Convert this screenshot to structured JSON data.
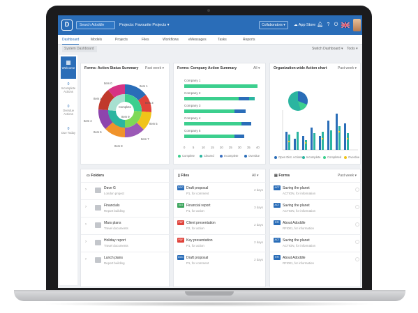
{
  "topbar": {
    "logo": "D",
    "search_placeholder": "Search Adoddle",
    "projects_label": "Projects: Favourite Projects",
    "collaborators_label": "Collaborators",
    "appstore_label": "App Store"
  },
  "nav": {
    "tabs": [
      "Dashboard",
      "Models",
      "Projects",
      "Files",
      "Workflows",
      "eMessages",
      "Tasks",
      "Reports"
    ]
  },
  "subbar": {
    "system_dashboard": "System Dashboard",
    "switch_dashboard": "Switch Dashboard",
    "tools": "Tools"
  },
  "leftcol": {
    "welcome": "Welcome",
    "stats": [
      {
        "num": "0",
        "label": "Incomplete Actions"
      },
      {
        "num": "0",
        "label": "Overdue Actions"
      },
      {
        "num": "0",
        "label": "Due Today"
      }
    ]
  },
  "card_status": {
    "title": "Forms: Action Status Summary",
    "filter": "Past week",
    "labels": [
      "Item 0",
      "Item 1",
      "Item 2",
      "Item 3",
      "Item 4",
      "Item 5",
      "Item 6",
      "Item 7",
      "Item 8",
      "Item 9",
      "Complete"
    ]
  },
  "card_company": {
    "title": "Forms: Company Action Summary",
    "filter": "All",
    "companies": [
      "Company 1",
      "Company 2",
      "Company 3",
      "Company 4",
      "Company 5"
    ],
    "ticks": [
      "0",
      "5",
      "10",
      "15",
      "20",
      "25",
      "30",
      "35",
      "40"
    ],
    "legend": [
      "Complete",
      "Cleared",
      "Incomplete",
      "Overdue"
    ],
    "colors": [
      "#3ccf8e",
      "#2bb5a0",
      "#3a6fbf",
      "#2a6db8"
    ]
  },
  "card_org": {
    "title": "Organization-wide Action chart",
    "filter": "Past week",
    "legend": [
      "Open Dist. Actions",
      "Incomplete",
      "Completed",
      "Overdue"
    ]
  },
  "card_folders": {
    "title": "Folders",
    "rows": [
      {
        "title": "Dave G",
        "sub": "London project"
      },
      {
        "title": "Financials",
        "sub": "Report building"
      },
      {
        "title": "Mars plans",
        "sub": "Travel documents"
      },
      {
        "title": "Holiday report",
        "sub": "Travel documents"
      },
      {
        "title": "Lunch plans",
        "sub": "Report building"
      }
    ]
  },
  "card_files": {
    "title": "Files",
    "filter": "All",
    "rows": [
      {
        "tag": "DOC",
        "color": "#2a6db8",
        "title": "Draft proposal",
        "sub": "P1, for comment",
        "time": "2 days"
      },
      {
        "tag": "XLS",
        "color": "#3ba55c",
        "title": "Financial report",
        "sub": "P1, for action",
        "time": "3 days"
      },
      {
        "tag": "PDF",
        "color": "#e0433b",
        "title": "Client presentation",
        "sub": "P2, for action",
        "time": "2 days"
      },
      {
        "tag": "PDF",
        "color": "#e0433b",
        "title": "Key presentation",
        "sub": "P1, for action",
        "time": "2 days"
      },
      {
        "tag": "DOC",
        "color": "#2a6db8",
        "title": "Draft proposal",
        "sub": "P1, for comment",
        "time": "2 days"
      }
    ]
  },
  "card_forms": {
    "title": "Forms",
    "filter": "Past week",
    "rows": [
      {
        "tag": "ACT",
        "title": "Saving the planet",
        "sub": "ACTION, for information"
      },
      {
        "tag": "ACT",
        "title": "Saving the planet",
        "sub": "ACTION, for information"
      },
      {
        "tag": "RFI",
        "title": "About Adoddle",
        "sub": "RFI001, for information"
      },
      {
        "tag": "ACT",
        "title": "Saving the planet",
        "sub": "ACTION, for information"
      },
      {
        "tag": "RFI",
        "title": "About Adoddle",
        "sub": "RFI001, for information"
      }
    ]
  }
}
